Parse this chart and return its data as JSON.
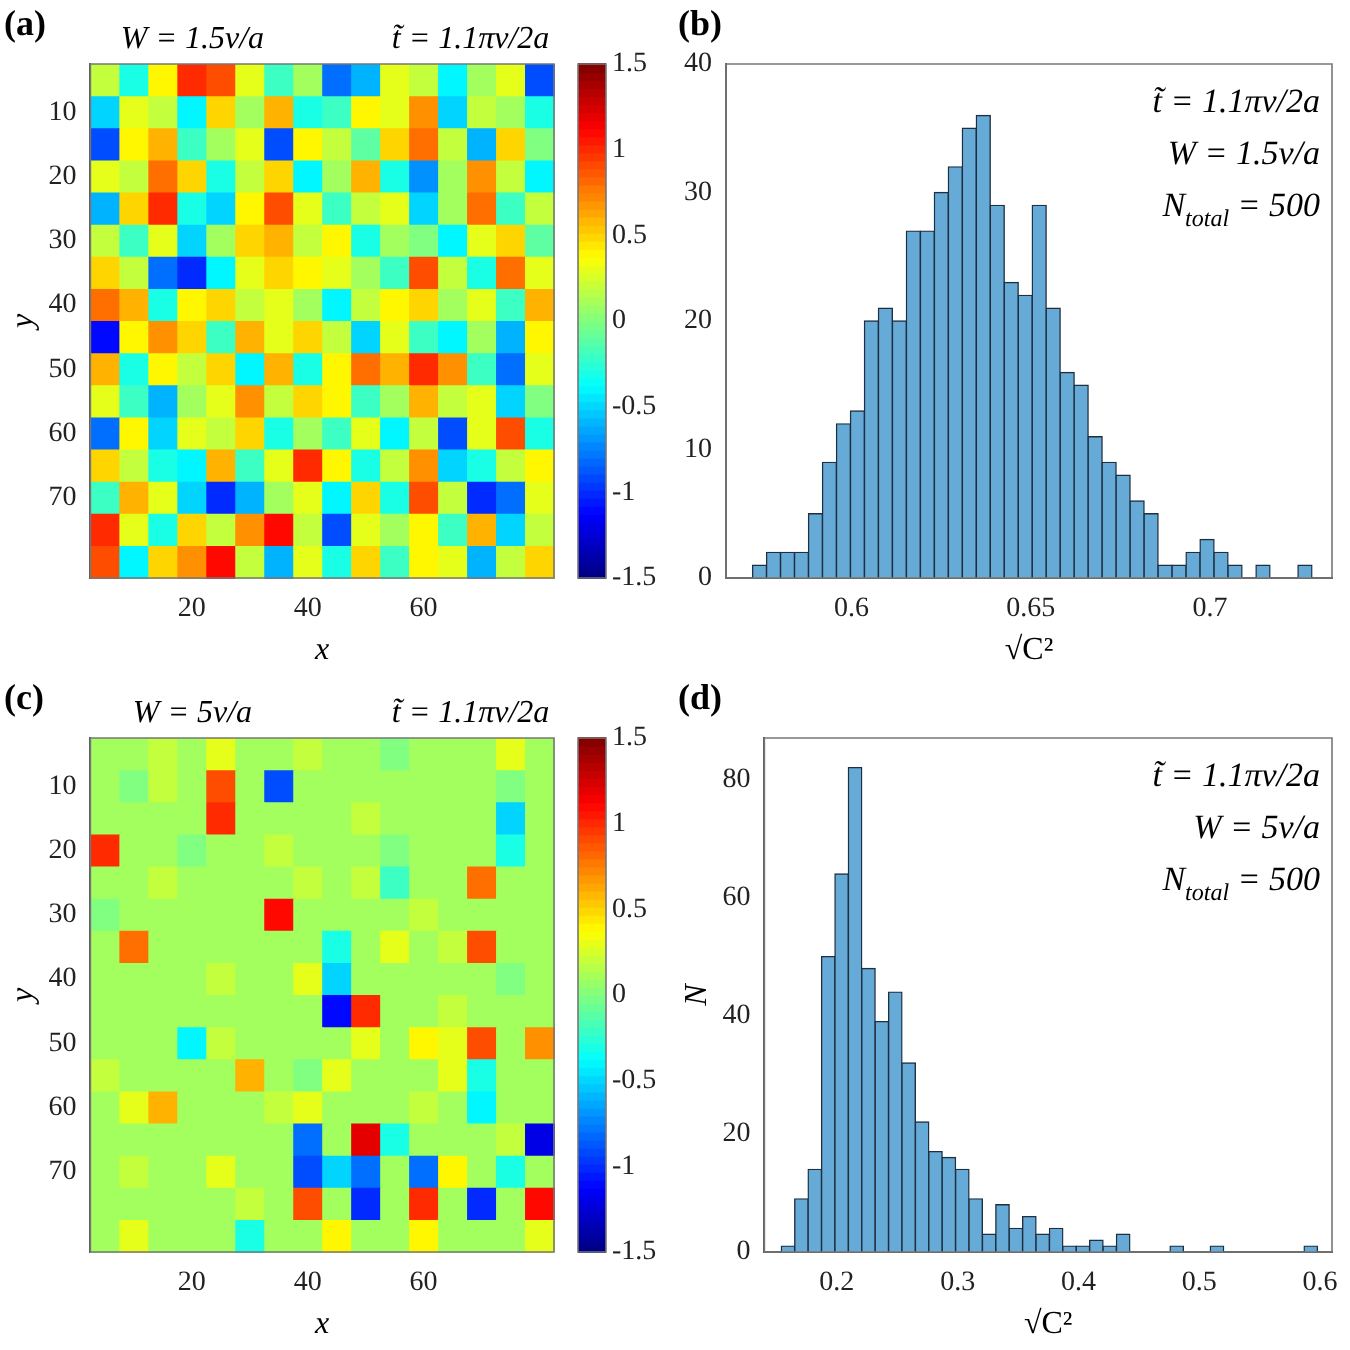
{
  "chart_data": [
    {
      "type": "heatmap",
      "title": "(a)",
      "annotations": [
        "W = 1.5v/a",
        "t̃ = 1.1πv/2a"
      ],
      "xlabel": "x",
      "ylabel": "y",
      "categories": [
        null,
        null,
        null,
        "20",
        null,
        null,
        null,
        "40",
        null,
        null,
        null,
        "60",
        null,
        null,
        null,
        null
      ],
      "y_categories": [
        null,
        "10",
        null,
        "20",
        null,
        "30",
        null,
        "40",
        null,
        "50",
        null,
        "60",
        null,
        "70",
        null,
        null
      ],
      "clim": [
        -1.5,
        1.5
      ],
      "cticks": [
        -1.5,
        -1,
        -0.5,
        0,
        0.5,
        1,
        1.5
      ],
      "cells": [
        [
          0.2,
          -0.3,
          0.4,
          1.0,
          0.9,
          0.3,
          -0.2,
          0.1,
          -0.8,
          -0.6,
          0.3,
          0.2,
          -0.4,
          0.1,
          0.3,
          -0.9
        ],
        [
          -0.5,
          0.3,
          0.2,
          -0.4,
          0.5,
          0.1,
          0.6,
          -0.3,
          -0.2,
          0.4,
          0.3,
          0.7,
          -0.5,
          0.2,
          0.1,
          -0.3
        ],
        [
          -0.9,
          0.4,
          0.6,
          -0.2,
          0.1,
          0.3,
          -0.9,
          0.4,
          0.2,
          -0.1,
          0.5,
          0.8,
          0.2,
          -0.6,
          0.5,
          0.0
        ],
        [
          0.3,
          0.2,
          0.8,
          0.5,
          -0.3,
          0.2,
          0.5,
          -0.4,
          0.1,
          0.6,
          -0.3,
          -0.7,
          0.1,
          0.7,
          0.2,
          -0.4
        ],
        [
          -0.6,
          0.5,
          1.0,
          -0.3,
          -0.5,
          0.4,
          0.9,
          0.3,
          -0.2,
          0.2,
          0.3,
          -0.5,
          0.1,
          0.8,
          -0.2,
          0.2
        ],
        [
          0.2,
          -0.2,
          0.3,
          -0.5,
          0.1,
          0.5,
          0.6,
          0.2,
          0.4,
          -0.3,
          0.1,
          0.0,
          -0.4,
          0.3,
          0.5,
          -0.1
        ],
        [
          0.5,
          0.2,
          -0.8,
          -1.0,
          -0.4,
          0.3,
          0.5,
          0.4,
          0.3,
          0.1,
          -0.2,
          0.9,
          0.2,
          -0.3,
          0.8,
          0.3
        ],
        [
          0.8,
          0.6,
          -0.3,
          0.4,
          0.5,
          0.2,
          0.3,
          0.1,
          -0.4,
          0.2,
          0.4,
          0.5,
          0.1,
          0.3,
          -0.2,
          0.6
        ],
        [
          -1.1,
          0.4,
          0.7,
          0.5,
          -0.2,
          0.6,
          0.3,
          0.5,
          0.2,
          -0.5,
          0.3,
          -0.2,
          -0.4,
          0.1,
          -0.6,
          0.4
        ],
        [
          0.6,
          -0.3,
          0.4,
          0.2,
          0.5,
          -0.4,
          0.6,
          -0.3,
          0.4,
          0.8,
          0.6,
          1.0,
          0.7,
          -0.2,
          -0.8,
          0.3
        ],
        [
          0.3,
          -0.2,
          -0.6,
          0.1,
          0.3,
          0.7,
          0.2,
          0.5,
          0.4,
          -0.2,
          0.1,
          0.6,
          0.2,
          0.3,
          -0.5,
          0.0
        ],
        [
          -0.8,
          0.4,
          -0.5,
          0.3,
          0.2,
          0.5,
          -0.3,
          0.1,
          -0.2,
          0.3,
          -0.4,
          0.2,
          -0.9,
          0.3,
          0.9,
          -0.3
        ],
        [
          0.5,
          0.2,
          -0.3,
          -0.4,
          0.6,
          -0.2,
          0.3,
          1.0,
          0.4,
          -0.3,
          0.2,
          0.7,
          -0.5,
          -0.3,
          0.2,
          0.4
        ],
        [
          -0.2,
          0.6,
          0.3,
          -0.5,
          -1.0,
          -0.6,
          0.1,
          0.3,
          -0.4,
          0.5,
          -0.3,
          0.9,
          0.2,
          -1.0,
          -0.8,
          0.3
        ],
        [
          1.0,
          0.3,
          -0.3,
          0.5,
          0.2,
          0.7,
          1.1,
          0.2,
          -0.9,
          0.3,
          0.1,
          0.4,
          -0.2,
          0.6,
          -0.5,
          0.2
        ],
        [
          0.9,
          -0.4,
          0.5,
          0.7,
          1.1,
          0.2,
          -0.6,
          0.3,
          -0.3,
          0.5,
          -0.2,
          0.4,
          0.3,
          -0.6,
          0.2,
          0.5
        ]
      ]
    },
    {
      "type": "histogram",
      "title": "(b)",
      "annotations": [
        "t̃ = 1.1πv/2a",
        "W = 1.5v/a",
        "N$_{total}$ = 500"
      ],
      "xlabel": "√C²",
      "color": "#66aad7",
      "bins": [
        0.5724,
        0.5763,
        0.5802,
        0.5841,
        0.588,
        0.5919,
        0.5958,
        0.5997,
        0.6036,
        0.6075,
        0.6114,
        0.6153,
        0.6192,
        0.6231,
        0.627,
        0.6309,
        0.6348,
        0.6387,
        0.6426,
        0.6465,
        0.6504,
        0.6543,
        0.6582,
        0.6621,
        0.666,
        0.6699,
        0.6738,
        0.6777,
        0.6816,
        0.6855,
        0.6894,
        0.6933,
        0.6972,
        0.7011,
        0.705,
        0.7089,
        0.7128,
        0.7167,
        0.7206,
        0.7245,
        0.7284
      ],
      "values": [
        1,
        2,
        2,
        2,
        5,
        9,
        12,
        13,
        20,
        21,
        20,
        27,
        27,
        30,
        32,
        35,
        36,
        29,
        23,
        22,
        29,
        21,
        16,
        15,
        11,
        9,
        8,
        6,
        5,
        1,
        1,
        2,
        3,
        2,
        1,
        0,
        1,
        0,
        0,
        1
      ],
      "xlim": [
        0.565,
        0.734
      ],
      "xticks": [
        0.6,
        0.65,
        0.7
      ],
      "ylim": [
        0,
        40
      ],
      "yticks": [
        0,
        10,
        20,
        30,
        40
      ]
    },
    {
      "type": "heatmap",
      "title": "(c)",
      "annotations": [
        "W = 5v/a",
        "t̃ = 1.1πv/2a"
      ],
      "xlabel": "x",
      "ylabel": "y",
      "categories": [
        null,
        null,
        null,
        "20",
        null,
        null,
        null,
        "40",
        null,
        null,
        null,
        "60",
        null,
        null,
        null,
        null
      ],
      "y_categories": [
        null,
        "10",
        null,
        "20",
        null,
        "30",
        null,
        "40",
        null,
        "50",
        null,
        "60",
        null,
        "70",
        null,
        null
      ],
      "clim": [
        -1.5,
        1.5
      ],
      "cticks": [
        -1.5,
        -1,
        -0.5,
        0,
        0.5,
        1,
        1.5
      ],
      "cells": [
        [
          0.1,
          0.1,
          0.2,
          0.1,
          0.3,
          0.1,
          0.1,
          0.2,
          0.1,
          0.1,
          0.0,
          0.1,
          0.1,
          0.1,
          0.3,
          0.1
        ],
        [
          0.1,
          0.0,
          0.2,
          0.1,
          0.9,
          0.1,
          -0.9,
          0.1,
          0.1,
          0.1,
          0.1,
          0.1,
          0.1,
          0.1,
          0.0,
          0.1
        ],
        [
          0.1,
          0.1,
          0.1,
          0.1,
          1.0,
          0.1,
          0.1,
          0.1,
          0.1,
          0.2,
          0.1,
          0.1,
          0.1,
          0.1,
          -0.5,
          0.1
        ],
        [
          1.0,
          0.1,
          0.1,
          0.0,
          0.1,
          0.1,
          0.2,
          0.1,
          0.1,
          0.1,
          0.0,
          0.1,
          0.1,
          0.1,
          -0.3,
          0.1
        ],
        [
          0.1,
          0.1,
          0.2,
          0.1,
          0.1,
          0.1,
          0.1,
          0.2,
          0.1,
          0.2,
          -0.2,
          0.1,
          0.1,
          0.8,
          0.1,
          0.1
        ],
        [
          0.0,
          0.1,
          0.1,
          0.1,
          0.1,
          0.1,
          1.1,
          0.1,
          0.1,
          0.1,
          0.1,
          0.2,
          0.1,
          0.1,
          0.1,
          0.1
        ],
        [
          0.1,
          0.8,
          0.1,
          0.1,
          0.1,
          0.1,
          0.1,
          0.1,
          -0.3,
          0.1,
          0.3,
          0.1,
          0.2,
          0.9,
          0.1,
          0.1
        ],
        [
          0.1,
          0.1,
          0.1,
          0.1,
          0.2,
          0.1,
          0.1,
          0.3,
          -0.5,
          0.1,
          0.1,
          0.1,
          0.1,
          0.1,
          0.0,
          0.1
        ],
        [
          0.1,
          0.1,
          0.1,
          0.1,
          0.1,
          0.1,
          0.1,
          0.1,
          -1.1,
          1.0,
          0.1,
          0.1,
          0.2,
          0.1,
          0.1,
          0.1
        ],
        [
          0.1,
          0.1,
          0.1,
          -0.4,
          0.2,
          0.1,
          0.1,
          0.1,
          0.1,
          0.3,
          0.1,
          0.4,
          0.3,
          0.9,
          0.1,
          0.7
        ],
        [
          0.2,
          0.1,
          0.1,
          0.1,
          0.1,
          0.6,
          0.1,
          0.0,
          0.3,
          0.1,
          0.1,
          0.1,
          0.3,
          -0.3,
          0.1,
          0.1
        ],
        [
          0.1,
          0.3,
          0.6,
          0.1,
          0.1,
          0.1,
          0.2,
          0.3,
          0.1,
          0.1,
          0.1,
          0.2,
          0.1,
          -0.4,
          0.1,
          0.1
        ],
        [
          0.1,
          0.1,
          0.1,
          0.1,
          0.1,
          0.1,
          0.1,
          -0.8,
          0.1,
          1.2,
          -0.3,
          0.1,
          0.1,
          0.1,
          0.2,
          -1.2
        ],
        [
          0.1,
          0.2,
          0.1,
          0.1,
          0.3,
          0.1,
          0.1,
          -0.9,
          -0.5,
          -0.8,
          0.1,
          -0.8,
          0.4,
          0.1,
          -0.3,
          0.1
        ],
        [
          0.1,
          0.1,
          0.1,
          0.1,
          0.1,
          0.2,
          0.1,
          0.9,
          0.1,
          -1.0,
          0.1,
          1.0,
          0.1,
          -1.0,
          0.1,
          1.1
        ],
        [
          0.1,
          0.3,
          0.1,
          0.1,
          0.1,
          -0.3,
          0.1,
          0.1,
          0.4,
          0.1,
          0.1,
          0.4,
          0.1,
          0.1,
          0.1,
          0.3
        ]
      ]
    },
    {
      "type": "histogram",
      "title": "(d)",
      "annotations": [
        "t̃ = 1.1πv/2a",
        "W = 5v/a",
        "N$_{total}$ = 500"
      ],
      "xlabel": "√C²",
      "ylabel": "N",
      "color": "#66aad7",
      "bins": [
        0.154,
        0.1651,
        0.1762,
        0.1873,
        0.1984,
        0.2095,
        0.2206,
        0.2317,
        0.2428,
        0.2539,
        0.265,
        0.2761,
        0.2872,
        0.2983,
        0.3094,
        0.3205,
        0.3316,
        0.3427,
        0.3538,
        0.3649,
        0.376,
        0.3871,
        0.3982,
        0.4093,
        0.4204,
        0.4315,
        0.4426,
        0.4537,
        0.4648,
        0.4759,
        0.487,
        0.4981,
        0.5092,
        0.5203,
        0.5314,
        0.5425,
        0.5536,
        0.5647,
        0.5758,
        0.5869,
        0.598
      ],
      "values": [
        1,
        9,
        14,
        50,
        64,
        82,
        48,
        39,
        44,
        32,
        22,
        17,
        16,
        14,
        9,
        3,
        8,
        4,
        6,
        3,
        4,
        1,
        1,
        2,
        1,
        3,
        0,
        0,
        0,
        1,
        0,
        0,
        1,
        0,
        0,
        0,
        0,
        0,
        0,
        1
      ],
      "xlim": [
        0.14,
        0.61
      ],
      "xticks": [
        0.2,
        0.3,
        0.4,
        0.5,
        0.6
      ],
      "ylim": [
        0,
        87
      ],
      "yticks": [
        0,
        20,
        40,
        60,
        80
      ]
    }
  ]
}
